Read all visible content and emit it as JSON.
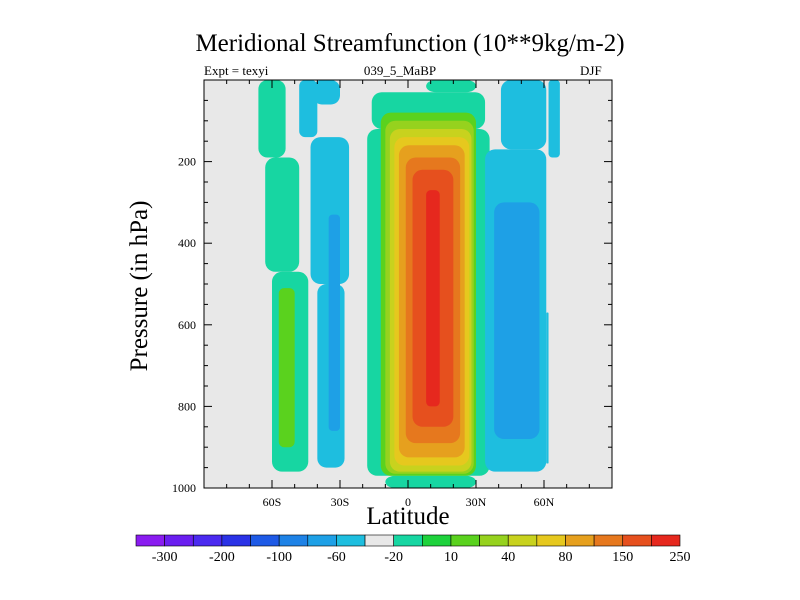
{
  "chart_data": {
    "type": "heatmap",
    "title": "Meridional Streamfunction (10**9kg/m-2)",
    "left_subtitle": "Expt = texyi",
    "center_subtitle": "039_5_MaBP",
    "right_subtitle": "DJF",
    "xlabel": "Latitude",
    "ylabel": "Pressure (in hPa)",
    "xlim": [
      -90,
      90
    ],
    "ylim": [
      1000,
      0
    ],
    "x_ticks": [
      {
        "value": -60,
        "label": "60S"
      },
      {
        "value": -30,
        "label": "30S"
      },
      {
        "value": 0,
        "label": "0"
      },
      {
        "value": 30,
        "label": "30N"
      },
      {
        "value": 60,
        "label": "60N"
      }
    ],
    "y_ticks": [
      {
        "value": 200,
        "label": "200"
      },
      {
        "value": 400,
        "label": "400"
      },
      {
        "value": 600,
        "label": "600"
      },
      {
        "value": 800,
        "label": "800"
      },
      {
        "value": 1000,
        "label": "1000"
      }
    ],
    "colorbar": {
      "colors": [
        "#8a1cf0",
        "#6a1ef0",
        "#4b2af0",
        "#2a32e6",
        "#1e5ae6",
        "#1e82e6",
        "#1ea0e6",
        "#1ebedf",
        "#e8e8e8",
        "#17d6a2",
        "#1ed23c",
        "#5ad21e",
        "#96d21e",
        "#c8d21e",
        "#e6c81e",
        "#e6a01e",
        "#e6781e",
        "#e6501e",
        "#e6281e"
      ],
      "labels": [
        {
          "after_index": 0,
          "text": "-300"
        },
        {
          "after_index": 2,
          "text": "-200"
        },
        {
          "after_index": 4,
          "text": "-100"
        },
        {
          "after_index": 6,
          "text": "-60"
        },
        {
          "after_index": 8,
          "text": "-20"
        },
        {
          "after_index": 10,
          "text": "10"
        },
        {
          "after_index": 12,
          "text": "40"
        },
        {
          "after_index": 14,
          "text": "80"
        },
        {
          "after_index": 16,
          "text": "150"
        },
        {
          "after_index": 18,
          "text": "250"
        }
      ]
    },
    "background_color": "#e8e8e8",
    "cells": [
      {
        "color": "#17d6a2",
        "lat_min": -66,
        "lat_max": -54,
        "p_top": 0,
        "p_bottom": 190
      },
      {
        "color": "#17d6a2",
        "lat_min": -63,
        "lat_max": -48,
        "p_top": 190,
        "p_bottom": 470
      },
      {
        "color": "#17d6a2",
        "lat_min": -60,
        "lat_max": -44,
        "p_top": 470,
        "p_bottom": 960
      },
      {
        "color": "#5ad21e",
        "lat_min": -57,
        "lat_max": -50,
        "p_top": 510,
        "p_bottom": 900
      },
      {
        "color": "#1ebedf",
        "lat_min": -48,
        "lat_max": -40,
        "p_top": 0,
        "p_bottom": 140
      },
      {
        "color": "#1ebedf",
        "lat_min": -43,
        "lat_max": -26,
        "p_top": 140,
        "p_bottom": 500
      },
      {
        "color": "#1ebedf",
        "lat_min": -40,
        "lat_max": -28,
        "p_top": 500,
        "p_bottom": 950
      },
      {
        "color": "#1ea0e6",
        "lat_min": -35,
        "lat_max": -30,
        "p_top": 330,
        "p_bottom": 860
      },
      {
        "color": "#1ebedf",
        "lat_min": -42,
        "lat_max": -30,
        "p_top": 0,
        "p_bottom": 60
      },
      {
        "color": "#17d6a2",
        "lat_min": 8,
        "lat_max": 30,
        "p_top": 0,
        "p_bottom": 30
      },
      {
        "color": "#17d6a2",
        "lat_min": -16,
        "lat_max": 34,
        "p_top": 30,
        "p_bottom": 120
      },
      {
        "color": "#17d6a2",
        "lat_min": -18,
        "lat_max": 36,
        "p_top": 120,
        "p_bottom": 970
      },
      {
        "color": "#17d6a2",
        "lat_min": -10,
        "lat_max": 30,
        "p_top": 970,
        "p_bottom": 1000
      },
      {
        "color": "#5ad21e",
        "lat_min": -12,
        "lat_max": 30,
        "p_top": 80,
        "p_bottom": 970
      },
      {
        "color": "#96d21e",
        "lat_min": -10,
        "lat_max": 29,
        "p_top": 100,
        "p_bottom": 965
      },
      {
        "color": "#c8d21e",
        "lat_min": -8,
        "lat_max": 28,
        "p_top": 120,
        "p_bottom": 960
      },
      {
        "color": "#e6c81e",
        "lat_min": -6,
        "lat_max": 27,
        "p_top": 140,
        "p_bottom": 945
      },
      {
        "color": "#e6a01e",
        "lat_min": -4,
        "lat_max": 25,
        "p_top": 160,
        "p_bottom": 925
      },
      {
        "color": "#e6781e",
        "lat_min": -1,
        "lat_max": 23,
        "p_top": 190,
        "p_bottom": 890
      },
      {
        "color": "#e6501e",
        "lat_min": 2,
        "lat_max": 20,
        "p_top": 220,
        "p_bottom": 850
      },
      {
        "color": "#e6281e",
        "lat_min": 8,
        "lat_max": 14,
        "p_top": 270,
        "p_bottom": 800
      },
      {
        "color": "#1ebedf",
        "lat_min": 34,
        "lat_max": 61,
        "p_top": 170,
        "p_bottom": 960
      },
      {
        "color": "#1ebedf",
        "lat_min": 41,
        "lat_max": 61,
        "p_top": 0,
        "p_bottom": 170
      },
      {
        "color": "#1ea0e6",
        "lat_min": 38,
        "lat_max": 58,
        "p_top": 300,
        "p_bottom": 880
      },
      {
        "color": "#1ebedf",
        "lat_min": 62,
        "lat_max": 67,
        "p_top": 0,
        "p_bottom": 190
      },
      {
        "color": "#1ebedf",
        "lat_min": 61,
        "lat_max": 62,
        "p_top": 570,
        "p_bottom": 940
      }
    ]
  }
}
